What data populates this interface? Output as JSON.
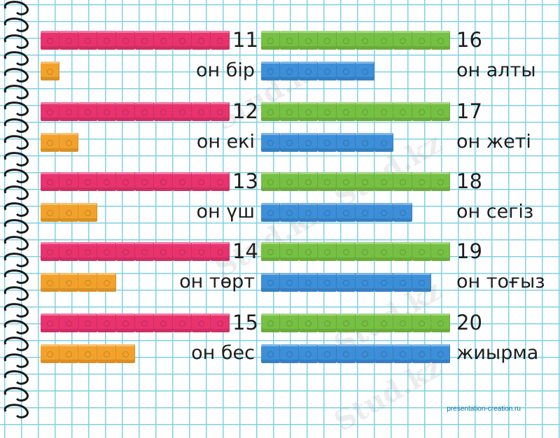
{
  "footer_text": "presentation-creation.ru",
  "watermark_text": "Stud.kz",
  "colors": {
    "pink": "#e8336f",
    "orange": "#f2a22b",
    "green": "#76c043",
    "blue": "#3c8fd8"
  },
  "left_numbers": [
    {
      "number": "11",
      "word": "он бір",
      "tens": 10,
      "ones": 1
    },
    {
      "number": "12",
      "word": "он екі",
      "tens": 10,
      "ones": 2
    },
    {
      "number": "13",
      "word": "он үш",
      "tens": 10,
      "ones": 3
    },
    {
      "number": "14",
      "word": "он төрт",
      "tens": 10,
      "ones": 4
    },
    {
      "number": "15",
      "word": "он бес",
      "tens": 10,
      "ones": 5
    }
  ],
  "right_numbers": [
    {
      "number": "16",
      "word": "он алты",
      "tens": 10,
      "ones": 6
    },
    {
      "number": "17",
      "word": "он жеті",
      "tens": 10,
      "ones": 7
    },
    {
      "number": "18",
      "word": "он сегіз",
      "tens": 10,
      "ones": 8
    },
    {
      "number": "19",
      "word": "он тоғыз",
      "tens": 10,
      "ones": 9
    },
    {
      "number": "20",
      "word": "жиырма",
      "tens": 10,
      "ones": 10
    }
  ]
}
